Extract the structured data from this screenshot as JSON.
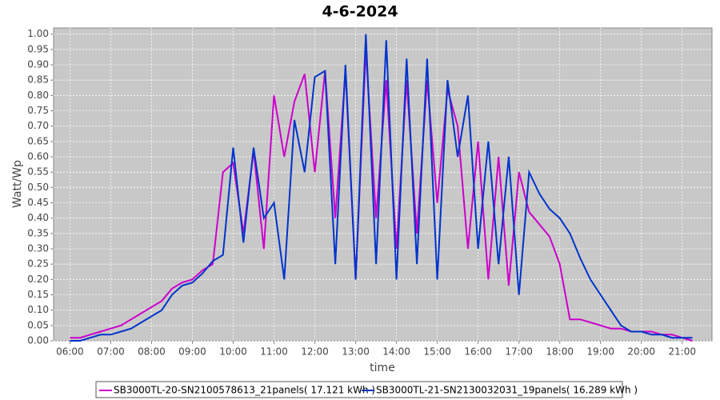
{
  "chart_data": {
    "type": "line",
    "title": "4-6-2024",
    "x_label": "time",
    "y_label": "Watt/Wp",
    "x": [
      6,
      6.25,
      6.5,
      6.75,
      7,
      7.25,
      7.5,
      7.75,
      8,
      8.25,
      8.5,
      8.75,
      9,
      9.25,
      9.5,
      9.75,
      10,
      10.25,
      10.5,
      10.75,
      11,
      11.25,
      11.5,
      11.75,
      12,
      12.25,
      12.5,
      12.75,
      13,
      13.25,
      13.5,
      13.75,
      14,
      14.25,
      14.5,
      14.75,
      15,
      15.25,
      15.5,
      15.75,
      16,
      16.25,
      16.5,
      16.75,
      17,
      17.25,
      17.5,
      17.75,
      18,
      18.25,
      18.5,
      18.75,
      19,
      19.25,
      19.5,
      19.75,
      20,
      20.25,
      20.5,
      20.75,
      21,
      21.25
    ],
    "series": [
      {
        "name": "SB3000TL-20-SN2100578613_21panels( 17.121 kWh )",
        "color": "#cc00cc",
        "values": [
          0.01,
          0.01,
          0.02,
          0.03,
          0.04,
          0.05,
          0.07,
          0.09,
          0.11,
          0.13,
          0.17,
          0.19,
          0.2,
          0.23,
          0.25,
          0.55,
          0.58,
          0.35,
          0.62,
          0.3,
          0.8,
          0.6,
          0.78,
          0.87,
          0.55,
          0.88,
          0.4,
          0.88,
          0.2,
          0.95,
          0.4,
          0.85,
          0.3,
          0.85,
          0.35,
          0.85,
          0.45,
          0.82,
          0.7,
          0.3,
          0.65,
          0.2,
          0.6,
          0.18,
          0.55,
          0.42,
          0.38,
          0.34,
          0.25,
          0.07,
          0.07,
          0.06,
          0.05,
          0.04,
          0.04,
          0.03,
          0.03,
          0.03,
          0.02,
          0.02,
          0.01,
          0
        ]
      },
      {
        "name": "SB3000TL-21-SN2130032031_19panels( 16.289 kWh )",
        "color": "#0033cc",
        "values": [
          0,
          0,
          0.01,
          0.02,
          0.02,
          0.03,
          0.04,
          0.06,
          0.08,
          0.1,
          0.15,
          0.18,
          0.19,
          0.22,
          0.26,
          0.28,
          0.63,
          0.32,
          0.63,
          0.4,
          0.45,
          0.2,
          0.72,
          0.55,
          0.86,
          0.88,
          0.25,
          0.9,
          0.2,
          1.0,
          0.25,
          0.98,
          0.2,
          0.92,
          0.25,
          0.92,
          0.2,
          0.85,
          0.6,
          0.8,
          0.3,
          0.65,
          0.25,
          0.6,
          0.15,
          0.55,
          0.48,
          0.43,
          0.4,
          0.35,
          0.27,
          0.2,
          0.15,
          0.1,
          0.05,
          0.03,
          0.03,
          0.02,
          0.02,
          0.01,
          0.01,
          0.01
        ]
      }
    ],
    "xlim": [
      5.6,
      21.73
    ],
    "xticks": [
      {
        "value": 6,
        "label": "06:00"
      },
      {
        "value": 7,
        "label": "07:00"
      },
      {
        "value": 8,
        "label": "08:00"
      },
      {
        "value": 9,
        "label": "09:00"
      },
      {
        "value": 10,
        "label": "10:00"
      },
      {
        "value": 11,
        "label": "11:00"
      },
      {
        "value": 12,
        "label": "12:00"
      },
      {
        "value": 13,
        "label": "13:00"
      },
      {
        "value": 14,
        "label": "14:00"
      },
      {
        "value": 15,
        "label": "15:00"
      },
      {
        "value": 16,
        "label": "16:00"
      },
      {
        "value": 17,
        "label": "17:00"
      },
      {
        "value": 18,
        "label": "18:00"
      },
      {
        "value": 19,
        "label": "19:00"
      },
      {
        "value": 20,
        "label": "20:00"
      },
      {
        "value": 21,
        "label": "21:00"
      }
    ],
    "ylim": [
      0,
      1.02
    ],
    "yticks": [
      {
        "value": 0,
        "label": "0.00"
      },
      {
        "value": 0.05,
        "label": "0.05"
      },
      {
        "value": 0.1,
        "label": "0.10"
      },
      {
        "value": 0.15,
        "label": "0.15"
      },
      {
        "value": 0.2,
        "label": "0.20"
      },
      {
        "value": 0.25,
        "label": "0.25"
      },
      {
        "value": 0.3,
        "label": "0.30"
      },
      {
        "value": 0.35,
        "label": "0.35"
      },
      {
        "value": 0.4,
        "label": "0.40"
      },
      {
        "value": 0.45,
        "label": "0.45"
      },
      {
        "value": 0.5,
        "label": "0.50"
      },
      {
        "value": 0.55,
        "label": "0.55"
      },
      {
        "value": 0.6,
        "label": "0.60"
      },
      {
        "value": 0.65,
        "label": "0.65"
      },
      {
        "value": 0.7,
        "label": "0.70"
      },
      {
        "value": 0.75,
        "label": "0.75"
      },
      {
        "value": 0.8,
        "label": "0.80"
      },
      {
        "value": 0.85,
        "label": "0.85"
      },
      {
        "value": 0.9,
        "label": "0.90"
      },
      {
        "value": 0.95,
        "label": "0.95"
      },
      {
        "value": 1,
        "label": "1.00"
      }
    ],
    "grid": true,
    "legend": "bottom"
  }
}
